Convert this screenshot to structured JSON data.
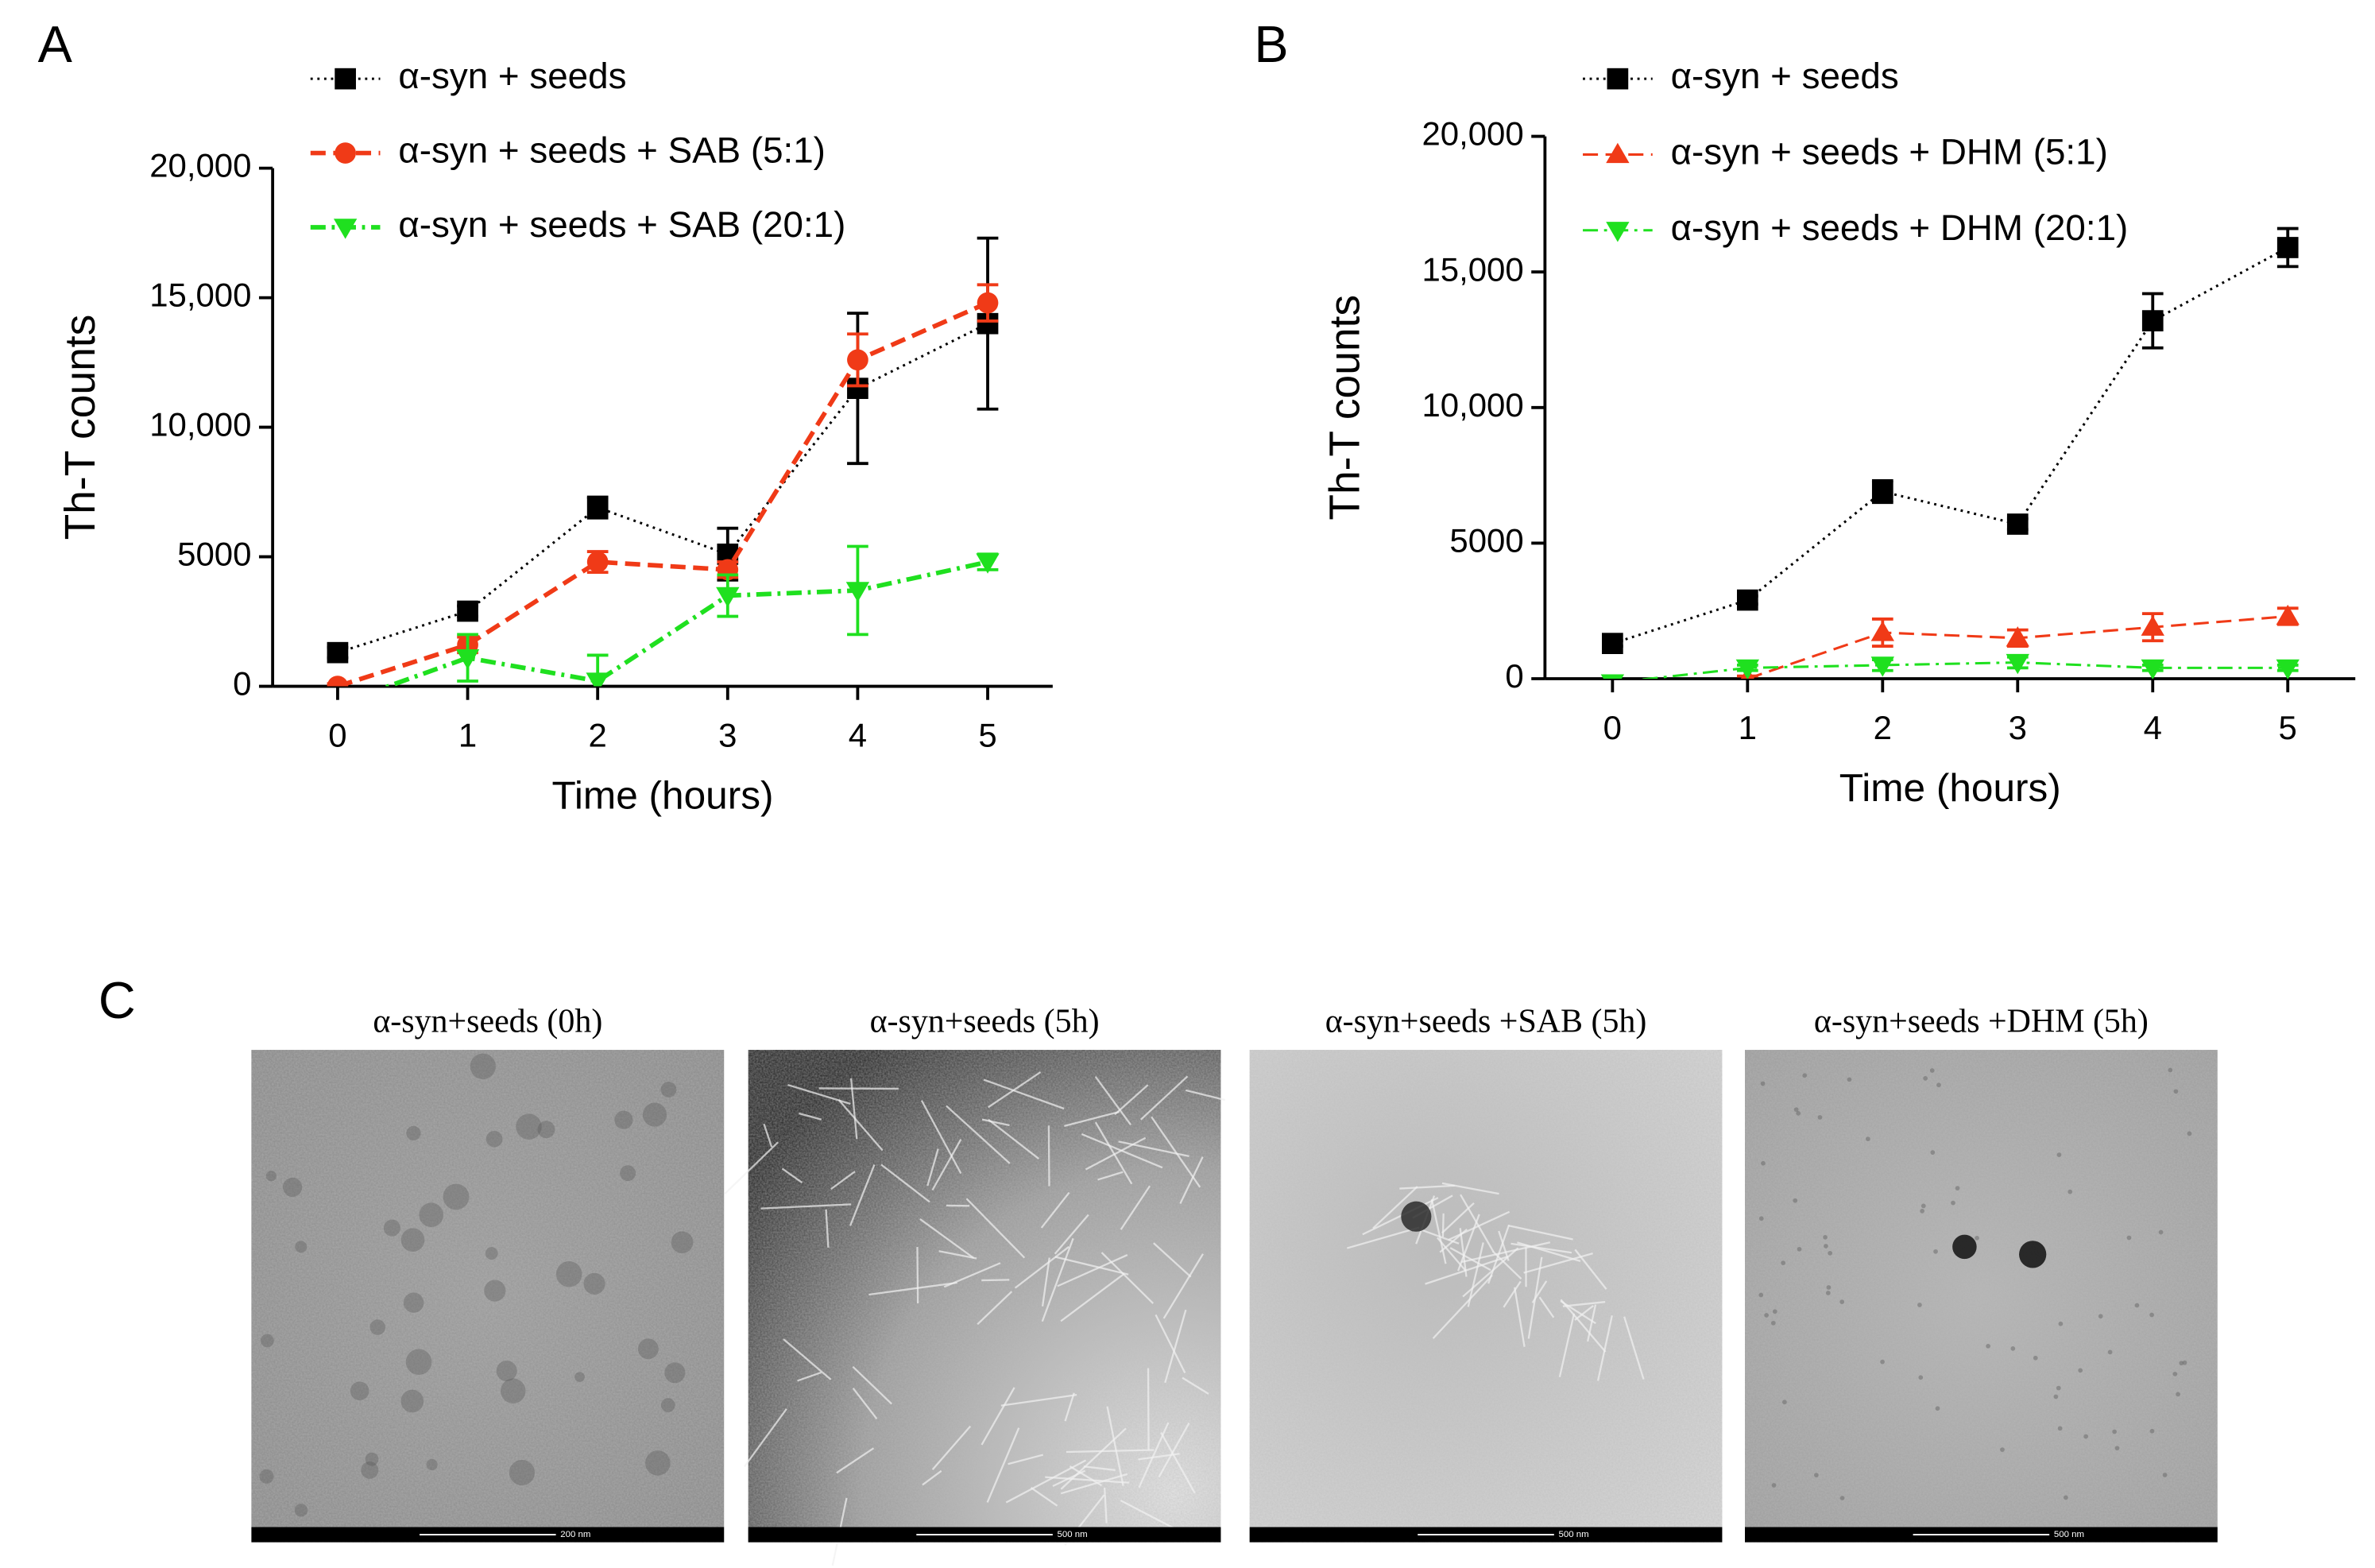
{
  "chart_data": [
    {
      "type": "line",
      "label": "A",
      "xlabel": "Time (hours)",
      "ylabel": "Th-T counts",
      "x": [
        0,
        1,
        2,
        3,
        4,
        5
      ],
      "xlim": [
        -0.5,
        5.5
      ],
      "xticks": [
        0,
        1,
        2,
        3,
        4,
        5
      ],
      "ylim": [
        0,
        20000
      ],
      "yticks": [
        0,
        5000,
        {
          "value": 10000,
          "label": "10,000"
        },
        {
          "value": 15000,
          "label": "15,000"
        },
        {
          "value": 20000,
          "label": "20,000"
        }
      ],
      "series": [
        {
          "name": "α-syn + seeds",
          "color": "#000000",
          "marker": "square",
          "dash": "dotted",
          "values": [
            1300,
            2900,
            6900,
            5100,
            11500,
            14000
          ],
          "errors": [
            200,
            200,
            400,
            1000,
            2900,
            3300
          ]
        },
        {
          "name": "α-syn + seeds + SAB (5:1)",
          "color": "#f03a17",
          "marker": "circle",
          "dash": "dashed",
          "values": [
            0,
            1600,
            4800,
            4500,
            12600,
            14800
          ],
          "errors": [
            100,
            300,
            400,
            300,
            1000,
            700
          ]
        },
        {
          "name": "α-syn + seeds + SAB (20:1)",
          "color": "#1fe01f",
          "marker": "triangle-down",
          "dash": "dashdot",
          "values": [
            -700,
            1100,
            200,
            3500,
            3700,
            4800
          ],
          "errors": [
            0,
            900,
            1000,
            800,
            1700,
            300
          ]
        }
      ]
    },
    {
      "type": "line",
      "label": "B",
      "xlabel": "Time (hours)",
      "ylabel": "Th-T counts",
      "x": [
        0,
        1,
        2,
        3,
        4,
        5
      ],
      "xlim": [
        -0.5,
        5.5
      ],
      "xticks": [
        0,
        1,
        2,
        3,
        4,
        5
      ],
      "ylim": [
        0,
        20000
      ],
      "yticks": [
        0,
        5000,
        {
          "value": 10000,
          "label": "10,000"
        },
        {
          "value": 15000,
          "label": "15,000"
        },
        {
          "value": 20000,
          "label": "20,000"
        }
      ],
      "series": [
        {
          "name": "α-syn + seeds",
          "color": "#000000",
          "marker": "square",
          "dash": "dotted",
          "values": [
            1300,
            2900,
            6900,
            5700,
            13200,
            15900
          ],
          "errors": [
            100,
            150,
            400,
            200,
            1000,
            700
          ]
        },
        {
          "name": "α-syn + seeds + DHM (5:1)",
          "color": "#f03a17",
          "marker": "triangle-up",
          "dash": "dashed",
          "values": [
            null,
            0,
            1700,
            1500,
            1900,
            2300
          ],
          "errors": [
            null,
            100,
            500,
            300,
            500,
            300
          ]
        },
        {
          "name": "α-syn + seeds + DHM (20:1)",
          "color": "#1fe01f",
          "marker": "triangle-down",
          "dash": "dashdot",
          "values": [
            -150,
            400,
            500,
            600,
            400,
            400
          ],
          "errors": [
            0,
            100,
            200,
            200,
            100,
            100
          ]
        }
      ]
    }
  ],
  "micrographs": {
    "label": "C",
    "images": [
      {
        "caption": "α-syn+seeds (0h)",
        "scale_bar": "200 nm"
      },
      {
        "caption": "α-syn+seeds (5h)",
        "scale_bar": "500 nm"
      },
      {
        "caption": "α-syn+seeds +SAB (5h)",
        "scale_bar": "500 nm"
      },
      {
        "caption": "α-syn+seeds +DHM (5h)",
        "scale_bar": "500 nm"
      }
    ]
  }
}
